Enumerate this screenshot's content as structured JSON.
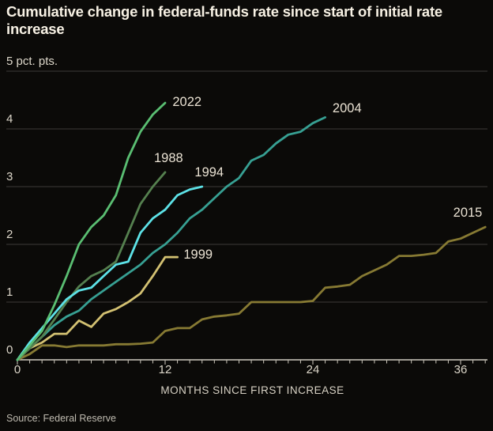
{
  "title": "Cumulative change in federal-funds rate since start of initial rate increase",
  "source_note": "Source: Federal Reserve",
  "chart_data": {
    "type": "line",
    "title": "Cumulative change in federal-funds rate since start of initial rate increase",
    "xlabel": "MONTHS SINCE FIRST INCREASE",
    "ylabel": "pct. pts.",
    "xlim": [
      0,
      38.3
    ],
    "ylim": [
      0,
      5
    ],
    "grid": "horizontal gridlines at 1,2,3,4,5",
    "legend_position": "labels at line ends",
    "background_color": "#0b0a08",
    "x_tick_labels": [
      "0",
      "12",
      "24",
      "36"
    ],
    "x_tick_values": [
      0,
      12,
      24,
      36
    ],
    "y_tick_values": [
      0,
      1,
      2,
      3,
      4,
      5
    ],
    "y_tick_labels": [
      "0",
      "1",
      "2",
      "3",
      "4",
      "5 pct. pts."
    ],
    "x_unit": "months since first rate increase",
    "y_unit": "cumulative percentage-point change",
    "series": [
      {
        "name": "2015",
        "color": "#877a33",
        "label_anchor": {
          "month": 35.4,
          "value": 2.55
        },
        "months_start": 0,
        "values": [
          0,
          0.1,
          0.25,
          0.25,
          0.22,
          0.25,
          0.25,
          0.25,
          0.27,
          0.27,
          0.28,
          0.3,
          0.5,
          0.55,
          0.55,
          0.7,
          0.75,
          0.77,
          0.8,
          1.0,
          1.0,
          1.0,
          1.0,
          1.0,
          1.02,
          1.25,
          1.27,
          1.3,
          1.45,
          1.55,
          1.65,
          1.8,
          1.8,
          1.82,
          1.85,
          2.05,
          2.1,
          2.2,
          2.3
        ]
      },
      {
        "name": "1999",
        "color": "#d3c172",
        "label_anchor": {
          "month": 13.5,
          "value": 1.82
        },
        "months_start": 0,
        "values": [
          0,
          0.2,
          0.3,
          0.45,
          0.45,
          0.68,
          0.57,
          0.8,
          0.88,
          1.0,
          1.15,
          1.45,
          1.78,
          1.78
        ]
      },
      {
        "name": "2004",
        "color": "#37a093",
        "label_anchor": {
          "month": 25.6,
          "value": 4.35
        },
        "months_start": 0,
        "values": [
          0,
          0.2,
          0.4,
          0.6,
          0.75,
          0.85,
          1.05,
          1.2,
          1.35,
          1.5,
          1.65,
          1.85,
          2.0,
          2.2,
          2.45,
          2.6,
          2.8,
          3.0,
          3.15,
          3.45,
          3.55,
          3.75,
          3.9,
          3.95,
          4.1,
          4.2
        ]
      },
      {
        "name": "1988",
        "color": "#55804f",
        "label_anchor": {
          "month": 11.1,
          "value": 3.5
        },
        "months_start": 0,
        "values": [
          0,
          0.2,
          0.4,
          0.7,
          1.0,
          1.27,
          1.45,
          1.55,
          1.7,
          2.2,
          2.7,
          3.0,
          3.25
        ]
      },
      {
        "name": "1994",
        "color": "#5de2e7",
        "label_anchor": {
          "month": 14.4,
          "value": 3.25
        },
        "months_start": 0,
        "values": [
          0,
          0.3,
          0.55,
          0.8,
          1.05,
          1.2,
          1.25,
          1.45,
          1.65,
          1.7,
          2.2,
          2.45,
          2.6,
          2.85,
          2.95,
          3.0
        ]
      },
      {
        "name": "2022",
        "color": "#5abe72",
        "label_anchor": {
          "month": 12.6,
          "value": 4.47
        },
        "months_start": 0,
        "values": [
          0,
          0.25,
          0.5,
          0.95,
          1.45,
          2.0,
          2.3,
          2.5,
          2.85,
          3.5,
          3.95,
          4.25,
          4.45
        ]
      }
    ],
    "style": {
      "gridline_color": "#3d3b37",
      "axis_line_color": "#d0cbbf",
      "title_color": "#f7f1e4",
      "tick_label_color": "#ddd7ca",
      "series_label_color": "#eae2d3",
      "source_color": "#bfbbb0",
      "line_width": 2.8
    }
  }
}
